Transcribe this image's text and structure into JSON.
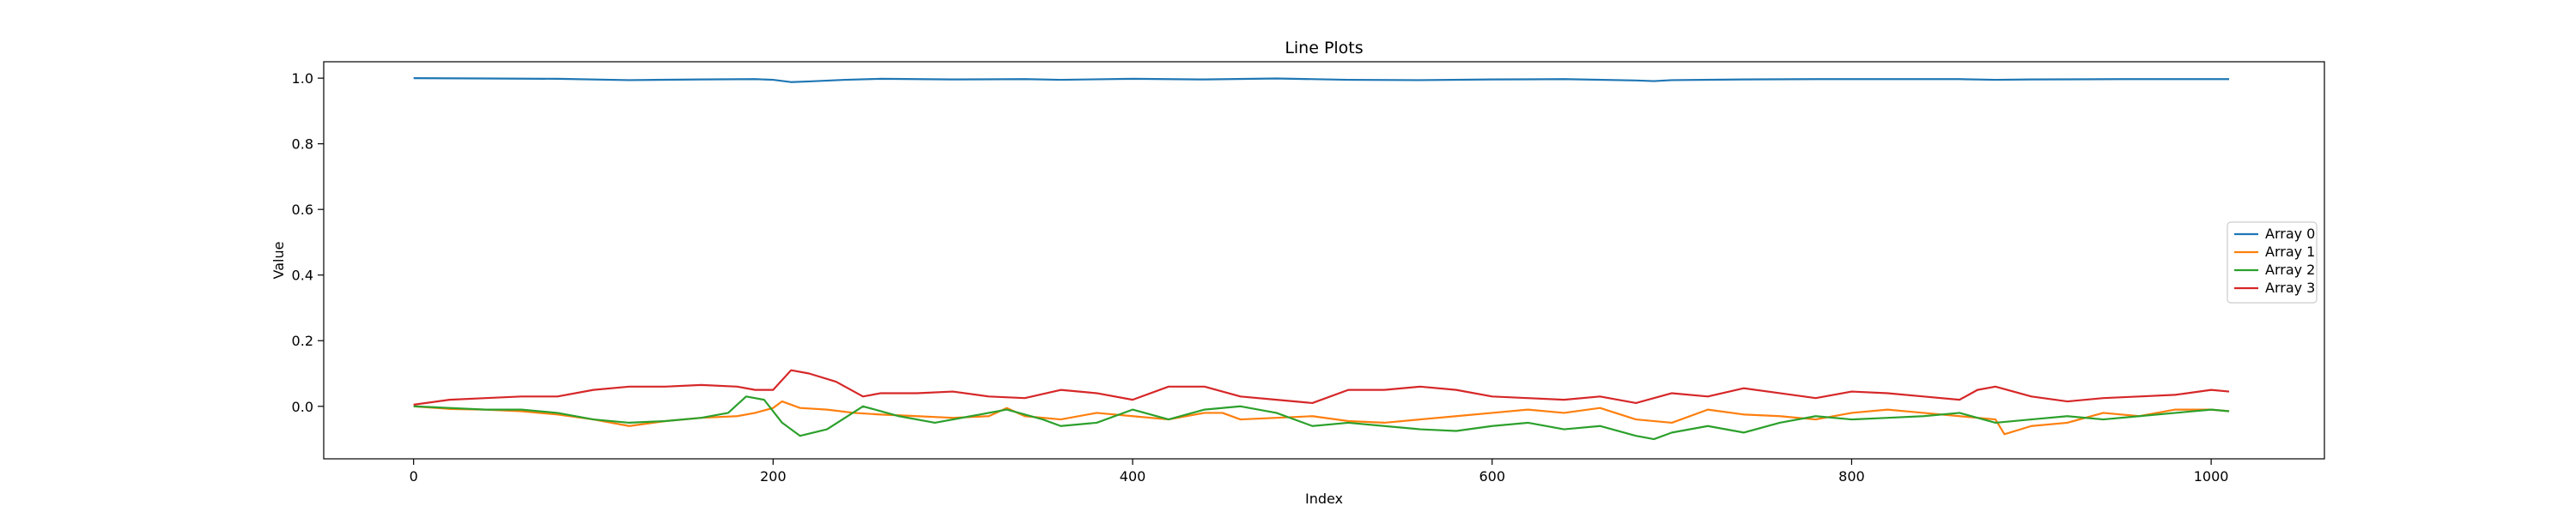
{
  "chart_data": {
    "type": "line",
    "title": "Line Plots",
    "xlabel": "Index",
    "ylabel": "Value",
    "xlim": [
      -50,
      1063
    ],
    "ylim": [
      -0.16,
      1.05
    ],
    "xticks": [
      0,
      200,
      400,
      600,
      800,
      1000
    ],
    "yticks": [
      -0.0,
      0.2,
      0.4,
      0.6,
      0.8,
      1.0
    ],
    "ytick_labels": [
      "0.0",
      "0.2",
      "0.4",
      "0.6",
      "0.8",
      "1.0"
    ],
    "grid": false,
    "legend_position": "center-right",
    "series": [
      {
        "name": "Array 0",
        "color": "#1f77b4",
        "x": [
          0,
          40,
          80,
          120,
          160,
          190,
          200,
          210,
          220,
          240,
          260,
          300,
          340,
          360,
          400,
          440,
          480,
          520,
          560,
          600,
          640,
          680,
          690,
          700,
          740,
          780,
          820,
          860,
          880,
          900,
          950,
          1010
        ],
        "y": [
          1.0,
          0.999,
          0.998,
          0.994,
          0.996,
          0.997,
          0.995,
          0.988,
          0.99,
          0.995,
          0.998,
          0.996,
          0.997,
          0.995,
          0.998,
          0.996,
          0.999,
          0.995,
          0.994,
          0.996,
          0.997,
          0.993,
          0.991,
          0.994,
          0.996,
          0.997,
          0.997,
          0.997,
          0.995,
          0.996,
          0.997,
          0.997
        ]
      },
      {
        "name": "Array 1",
        "color": "#ff7f0e",
        "x": [
          0,
          20,
          40,
          60,
          80,
          100,
          120,
          140,
          160,
          180,
          190,
          200,
          205,
          215,
          230,
          245,
          260,
          280,
          300,
          320,
          330,
          340,
          360,
          380,
          400,
          420,
          440,
          450,
          460,
          480,
          500,
          520,
          540,
          560,
          580,
          600,
          620,
          640,
          660,
          680,
          700,
          720,
          740,
          760,
          780,
          800,
          820,
          840,
          860,
          880,
          885,
          900,
          920,
          940,
          960,
          980,
          1000,
          1010
        ],
        "y": [
          0.0,
          -0.008,
          -0.01,
          -0.015,
          -0.025,
          -0.04,
          -0.06,
          -0.045,
          -0.035,
          -0.03,
          -0.02,
          -0.005,
          0.015,
          -0.005,
          -0.01,
          -0.02,
          -0.025,
          -0.03,
          -0.035,
          -0.03,
          -0.005,
          -0.03,
          -0.04,
          -0.02,
          -0.03,
          -0.04,
          -0.02,
          -0.02,
          -0.04,
          -0.035,
          -0.03,
          -0.045,
          -0.05,
          -0.04,
          -0.03,
          -0.02,
          -0.01,
          -0.02,
          -0.005,
          -0.04,
          -0.05,
          -0.01,
          -0.025,
          -0.03,
          -0.04,
          -0.02,
          -0.01,
          -0.02,
          -0.03,
          -0.04,
          -0.085,
          -0.06,
          -0.05,
          -0.02,
          -0.03,
          -0.01,
          -0.01,
          -0.015
        ]
      },
      {
        "name": "Array 2",
        "color": "#2ca02c",
        "x": [
          0,
          20,
          40,
          60,
          80,
          100,
          120,
          140,
          160,
          175,
          185,
          195,
          205,
          215,
          230,
          250,
          270,
          290,
          310,
          330,
          350,
          360,
          380,
          400,
          420,
          440,
          460,
          480,
          500,
          520,
          540,
          560,
          580,
          600,
          620,
          640,
          660,
          680,
          690,
          700,
          720,
          740,
          760,
          780,
          800,
          820,
          840,
          860,
          880,
          900,
          920,
          940,
          960,
          980,
          1000,
          1010
        ],
        "y": [
          0.0,
          -0.005,
          -0.01,
          -0.01,
          -0.02,
          -0.04,
          -0.05,
          -0.045,
          -0.035,
          -0.02,
          0.03,
          0.02,
          -0.05,
          -0.09,
          -0.07,
          0.0,
          -0.03,
          -0.05,
          -0.03,
          -0.01,
          -0.04,
          -0.06,
          -0.05,
          -0.01,
          -0.04,
          -0.01,
          0.0,
          -0.02,
          -0.06,
          -0.05,
          -0.06,
          -0.07,
          -0.075,
          -0.06,
          -0.05,
          -0.07,
          -0.06,
          -0.09,
          -0.1,
          -0.08,
          -0.06,
          -0.08,
          -0.05,
          -0.03,
          -0.04,
          -0.035,
          -0.03,
          -0.02,
          -0.05,
          -0.04,
          -0.03,
          -0.04,
          -0.03,
          -0.02,
          -0.01,
          -0.015
        ]
      },
      {
        "name": "Array 3",
        "color": "#d62728",
        "x": [
          0,
          20,
          40,
          60,
          80,
          100,
          120,
          140,
          160,
          180,
          190,
          200,
          210,
          220,
          235,
          250,
          260,
          280,
          300,
          320,
          340,
          360,
          380,
          400,
          420,
          440,
          460,
          480,
          500,
          520,
          540,
          560,
          580,
          600,
          620,
          640,
          660,
          680,
          700,
          720,
          740,
          760,
          780,
          800,
          820,
          840,
          860,
          870,
          880,
          900,
          920,
          940,
          960,
          980,
          1000,
          1010
        ],
        "y": [
          0.005,
          0.02,
          0.025,
          0.03,
          0.03,
          0.05,
          0.06,
          0.06,
          0.065,
          0.06,
          0.05,
          0.05,
          0.11,
          0.1,
          0.075,
          0.03,
          0.04,
          0.04,
          0.045,
          0.03,
          0.025,
          0.05,
          0.04,
          0.02,
          0.06,
          0.06,
          0.03,
          0.02,
          0.01,
          0.05,
          0.05,
          0.06,
          0.05,
          0.03,
          0.025,
          0.02,
          0.03,
          0.01,
          0.04,
          0.03,
          0.055,
          0.04,
          0.025,
          0.045,
          0.04,
          0.03,
          0.02,
          0.05,
          0.06,
          0.03,
          0.015,
          0.025,
          0.03,
          0.035,
          0.05,
          0.045
        ]
      }
    ]
  }
}
